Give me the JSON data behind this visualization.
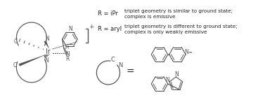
{
  "background_color": "#ffffff",
  "text_color": "#333333",
  "fig_width": 3.77,
  "fig_height": 1.56,
  "dpi": 100,
  "r_ipr_label": "R = iPr",
  "r_aryl_label": "R = aryl",
  "r_ipr_text_line1": "triplet geometry is similar to ground state;",
  "r_ipr_text_line2": "complex is emissive",
  "r_aryl_text_line1": "triplet geometry is different to ground state;",
  "r_aryl_text_line2": "complex is only weakly emissive",
  "equals_sign": "=",
  "font_size_label": 6.0,
  "font_size_text": 5.2,
  "gray": "#555555"
}
